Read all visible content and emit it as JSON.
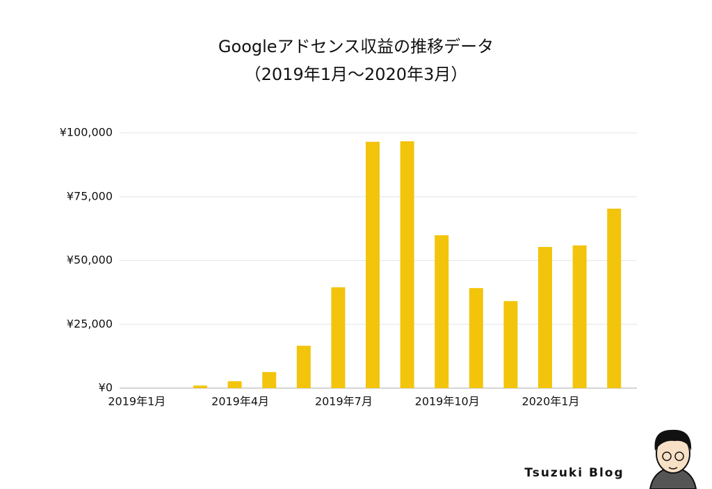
{
  "chart_data": {
    "type": "bar",
    "title": "Googleアドセンス収益の推移データ",
    "subtitle": "（2019年1月〜2020年3月）",
    "categories": [
      "2019年1月",
      null,
      null,
      "2019年4月",
      null,
      null,
      "2019年7月",
      null,
      null,
      "2019年10月",
      null,
      null,
      "2020年1月",
      null,
      null
    ],
    "values": [
      0,
      0,
      1000,
      2700,
      6300,
      16600,
      39500,
      96500,
      96700,
      59900,
      39200,
      34100,
      55300,
      55900,
      70300
    ],
    "color": "#f2c40c",
    "ylim": [
      0,
      100000
    ],
    "yticks": [
      {
        "value": 0,
        "label": "¥0"
      },
      {
        "value": 25000,
        "label": "¥25,000"
      },
      {
        "value": 50000,
        "label": "¥50,000"
      },
      {
        "value": 75000,
        "label": "¥75,000"
      },
      {
        "value": 100000,
        "label": "¥100,000"
      }
    ],
    "grid": true,
    "credit": "Tsuzuki Blog"
  }
}
